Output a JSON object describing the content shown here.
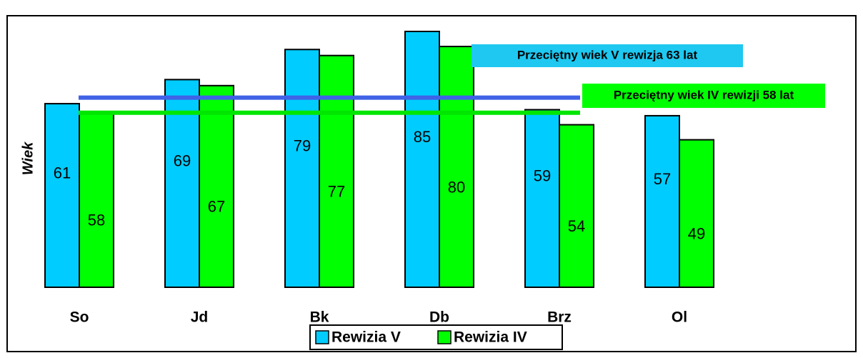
{
  "chart_data": {
    "type": "bar",
    "y_label": "Wiek",
    "categories": [
      "So",
      "Jd",
      "Bk",
      "Db",
      "Brz",
      "Ol"
    ],
    "series": [
      {
        "name": "Rewizia V",
        "color": "#00ccff",
        "values": [
          61,
          69,
          79,
          85,
          59,
          57
        ]
      },
      {
        "name": "Rewizia IV",
        "color": "#00ff00",
        "values": [
          58,
          67,
          77,
          80,
          54,
          49
        ]
      }
    ],
    "reference_lines": [
      {
        "value": 63,
        "label": "Przeciętny wiek V rewizja 63 lat",
        "color": "#3f62e6",
        "box_color": "#1ec8f0"
      },
      {
        "value": 58,
        "label": "Przeciętny wiek IV rewizji 58 lat",
        "color": "#00e600",
        "box_color": "#00ff00"
      }
    ]
  }
}
